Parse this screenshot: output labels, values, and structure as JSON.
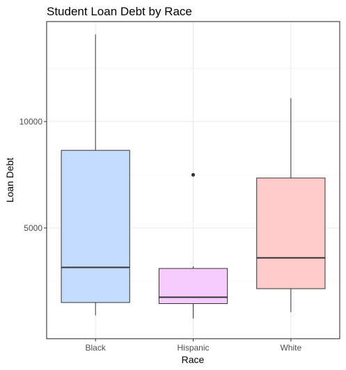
{
  "chart_data": {
    "type": "box",
    "title": "Student Loan Debt by Race",
    "xlabel": "Race",
    "ylabel": "Loan Debt",
    "categories": [
      "Black",
      "Hispanic",
      "White"
    ],
    "ylim": [
      -200,
      14700
    ],
    "yticks": [
      5000,
      10000
    ],
    "ytick_labels": [
      "5000",
      "10000"
    ],
    "grid": true,
    "boxes": [
      {
        "category": "Black",
        "whisker_low": 900,
        "q1": 1500,
        "median": 3150,
        "q3": 8650,
        "whisker_high": 14100,
        "outliers": [],
        "fill": "#c3dcff"
      },
      {
        "category": "Hispanic",
        "whisker_low": 750,
        "q1": 1450,
        "median": 1750,
        "q3": 3100,
        "whisker_high": 3200,
        "outliers": [
          7500
        ],
        "fill": "#f6ccff"
      },
      {
        "category": "White",
        "whisker_low": 1050,
        "q1": 2150,
        "median": 3600,
        "q3": 7350,
        "whisker_high": 11100,
        "outliers": [],
        "fill": "#ffcbcb"
      }
    ]
  }
}
